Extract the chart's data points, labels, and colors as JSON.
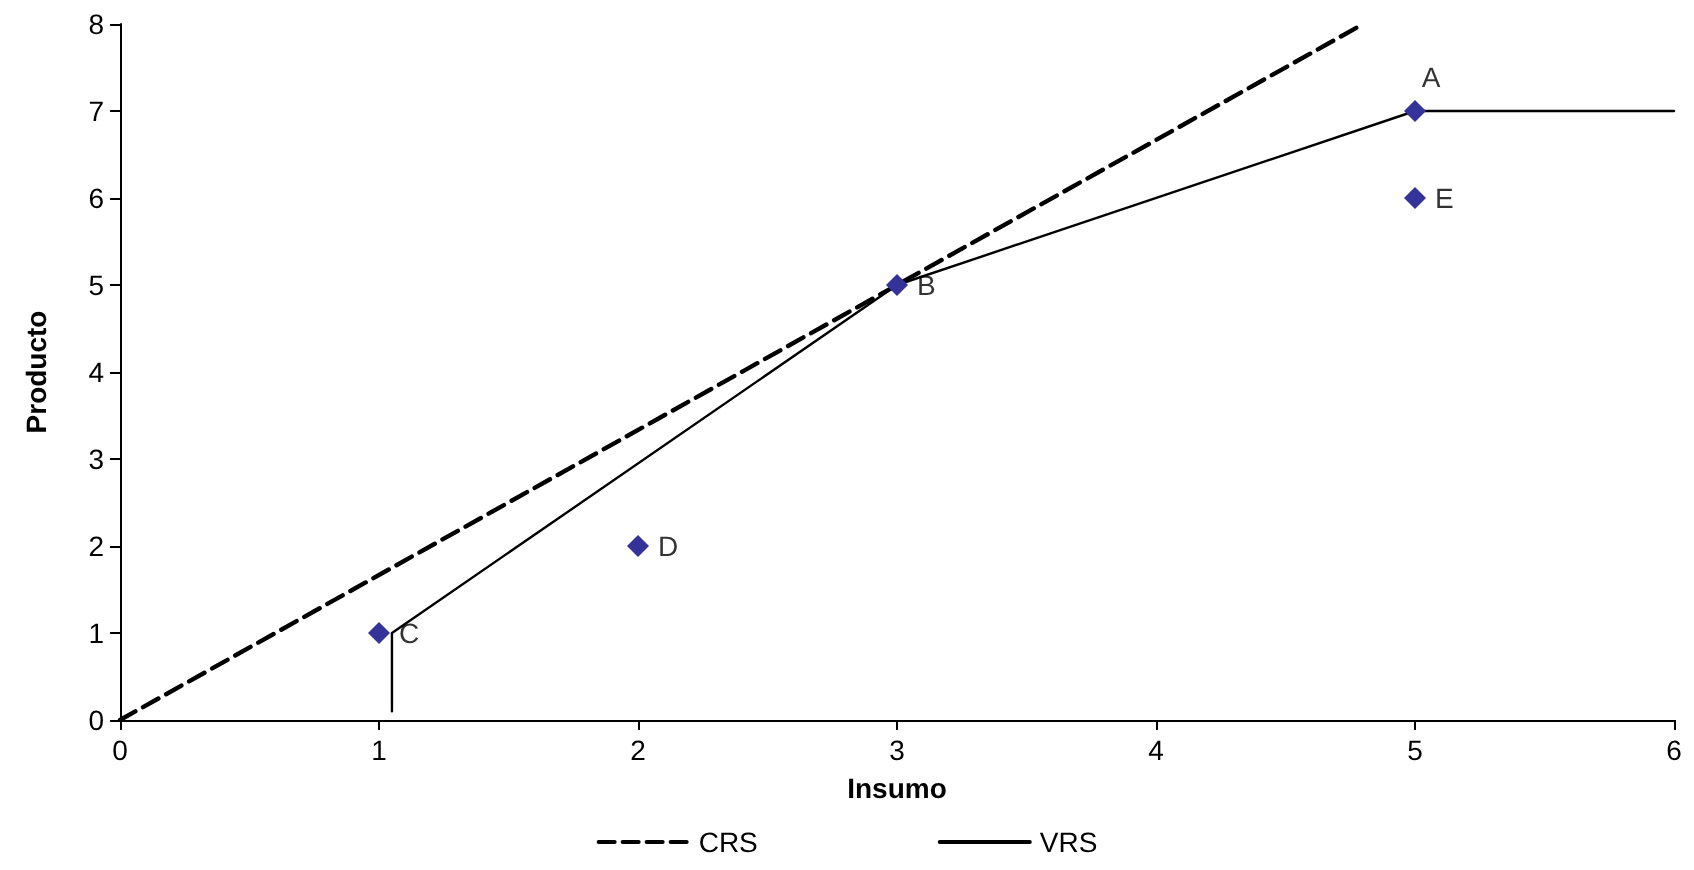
{
  "chart_data": {
    "type": "scatter",
    "xlabel": "Insumo",
    "ylabel": "Producto",
    "xlim": [
      0,
      6
    ],
    "xticks": [
      0,
      1,
      2,
      3,
      4,
      5,
      6
    ],
    "ylim": [
      0,
      8
    ],
    "yticks": [
      0,
      1,
      2,
      3,
      4,
      5,
      6,
      7,
      8
    ],
    "grid": false,
    "legend": "bottom",
    "marker": "diamond",
    "series": [
      {
        "color": "#333399",
        "x": [
          5,
          3,
          1,
          2,
          5
        ],
        "values": [
          7,
          5,
          1,
          2,
          6
        ]
      },
      {
        "type": "line",
        "name": "CRS",
        "color": "#000000",
        "line_style": "dashed",
        "marker": "none",
        "x": [
          0,
          4.8
        ],
        "values": [
          0,
          8
        ]
      },
      {
        "type": "line",
        "name": "VRS",
        "color": "#000000",
        "line_style": "solid",
        "marker": "none",
        "x": [
          1.05,
          1.05,
          3,
          5,
          6
        ],
        "values": [
          0.1,
          1,
          5,
          7,
          7
        ]
      }
    ],
    "annotations": [
      {
        "text": "A",
        "x": 5,
        "y": 7
      },
      {
        "text": "B",
        "x": 3,
        "y": 5
      },
      {
        "text": "C",
        "x": 1,
        "y": 1
      },
      {
        "text": "D",
        "x": 2,
        "y": 2
      },
      {
        "text": "E",
        "x": 5,
        "y": 6
      }
    ]
  }
}
